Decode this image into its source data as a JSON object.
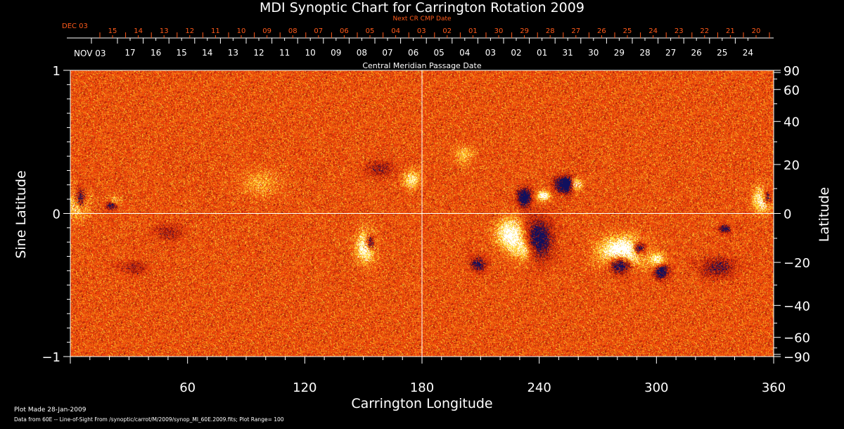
{
  "chart_data": {
    "type": "heatmap",
    "title": "MDI Synoptic Chart for Carrington Rotation 2009",
    "xlabel": "Carrington Longitude",
    "ylabel": "Sine Latitude",
    "y2label": "Latitude",
    "xlim": [
      0,
      360
    ],
    "ylim": [
      -1,
      1
    ],
    "x_ticks": [
      60,
      120,
      180,
      240,
      300,
      360
    ],
    "y_ticks": [
      -1,
      0,
      1
    ],
    "y2_ticks": [
      90,
      60,
      40,
      20,
      0,
      -20,
      -40,
      -60,
      -90
    ],
    "top_axis_next": {
      "label": "Next CR CMP Date",
      "start_label": "DEC 03",
      "ticks": [
        "15",
        "14",
        "13",
        "12",
        "11",
        "10",
        "09",
        "08",
        "07",
        "06",
        "05",
        "04",
        "03",
        "02",
        "01",
        "30",
        "29",
        "28",
        "27",
        "26",
        "25",
        "24",
        "23",
        "22",
        "21",
        "20"
      ]
    },
    "top_axis_cmp": {
      "label": "Central Meridian Passage Date",
      "start_label": "NOV 03",
      "ticks": [
        "17",
        "16",
        "15",
        "14",
        "13",
        "12",
        "11",
        "10",
        "09",
        "08",
        "07",
        "06",
        "05",
        "04",
        "03",
        "02",
        "01",
        "31",
        "30",
        "29",
        "28",
        "27",
        "26",
        "25",
        "24"
      ]
    },
    "colormap": {
      "negative": "#10105e",
      "zero": "#e03a10",
      "positive": "#ffffff"
    },
    "plot_range": 100
  },
  "footer": {
    "plot_made": "Plot Made 28-Jan-2009",
    "data_from": "Data from 60E -- Line-of-Sight From /synoptic/carrot/M/2009/synop_Ml_60E.2009.fits; Plot Range=  100"
  }
}
